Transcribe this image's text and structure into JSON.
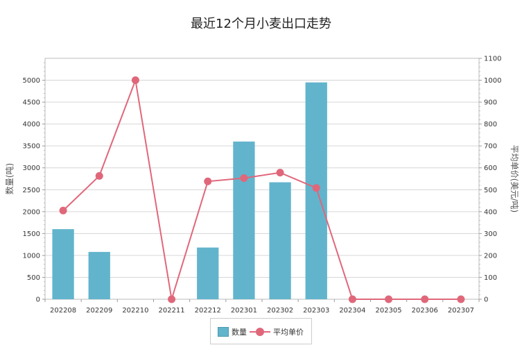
{
  "chart_data": {
    "type": "bar",
    "title": "最近12个月小麦出口走势",
    "categories": [
      "202208",
      "202209",
      "202210",
      "202211",
      "202212",
      "202301",
      "202302",
      "202303",
      "202304",
      "202305",
      "202306",
      "202307"
    ],
    "ylabel": "数量(吨)",
    "y2label": "平均单价(美元/吨)",
    "ylim": [
      0,
      5500
    ],
    "y2lim": [
      0,
      1100
    ],
    "yticks": [
      "0",
      "500",
      "1000",
      "1500",
      "2000",
      "2500",
      "3000",
      "3500",
      "4000",
      "4500",
      "5000"
    ],
    "y2ticks": [
      "0",
      "100",
      "200",
      "300",
      "400",
      "500",
      "600",
      "700",
      "800",
      "900",
      "1000",
      "1100"
    ],
    "grid": true,
    "legend_position": "bottom",
    "series": [
      {
        "name": "数量",
        "type": "bar",
        "color": "#62b4cc",
        "values": [
          1600,
          1080,
          0,
          0,
          1180,
          3600,
          2670,
          4950,
          0,
          0,
          0,
          0
        ]
      },
      {
        "name": "平均单价",
        "type": "line",
        "axis": "right",
        "color": "#e0677a",
        "values": [
          405,
          563,
          1000,
          0,
          538,
          553,
          578,
          508,
          0,
          0,
          0,
          0
        ]
      }
    ]
  }
}
